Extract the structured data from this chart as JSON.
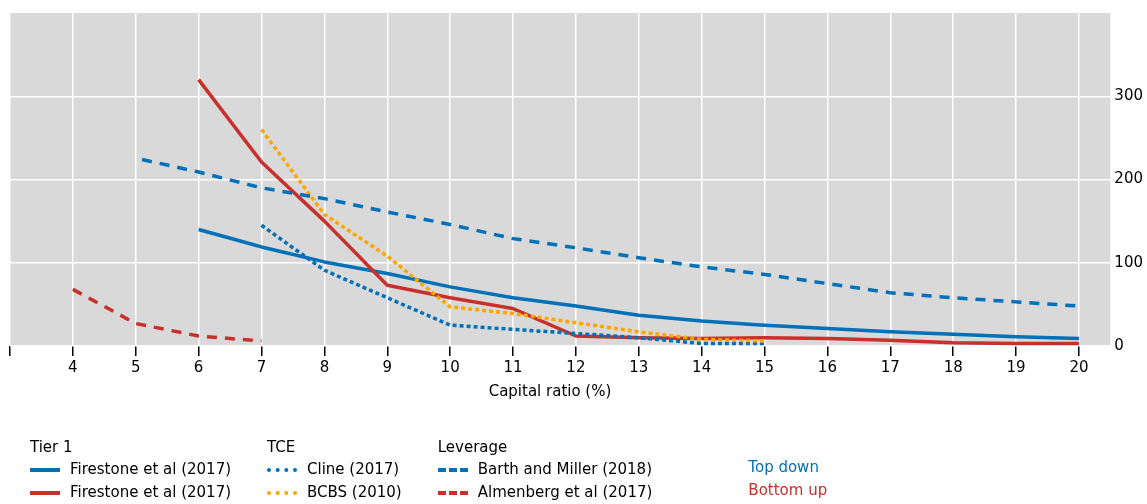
{
  "chart_data": {
    "type": "line",
    "xlabel": "Capital ratio (%)",
    "xlim": [
      3,
      20.5
    ],
    "xticks": [
      {
        "value": 3,
        "label": null
      },
      4,
      5,
      6,
      7,
      8,
      9,
      10,
      11,
      12,
      13,
      14,
      15,
      16,
      17,
      18,
      19,
      20
    ],
    "ylim": [
      0,
      400
    ],
    "yticks": [
      0,
      100,
      200,
      300
    ],
    "grid": true,
    "legend": "bottom",
    "marker": "none",
    "annotations": [
      "Tier 1",
      "TCE",
      "Leverage",
      "Top down",
      "Bottom up"
    ],
    "series": [
      {
        "name": "Firestone et al (2017)",
        "color": "#0070b8",
        "line_style": "solid",
        "x": [
          6,
          7,
          8,
          9,
          10,
          11,
          12,
          13,
          14,
          15,
          16,
          17,
          18,
          19,
          20
        ],
        "values": [
          140,
          119,
          101,
          87,
          71,
          58,
          48,
          37,
          30,
          25,
          21,
          17,
          14,
          11,
          9
        ]
      },
      {
        "name": "Firestone et al (2017)",
        "color": "#c8302c",
        "line_style": "solid",
        "x": [
          6,
          7,
          8,
          9,
          10,
          11,
          12,
          13,
          14,
          15,
          16,
          17,
          18,
          19,
          20
        ],
        "values": [
          320,
          221,
          150,
          73,
          58,
          45,
          12,
          10,
          9,
          10,
          9,
          7,
          4,
          3,
          3
        ]
      },
      {
        "name": "Cline (2017)",
        "color": "#0070b8",
        "line_style": "dotted",
        "x": [
          7,
          8,
          9,
          10,
          11,
          12,
          13,
          14,
          15
        ],
        "values": [
          145,
          91,
          58,
          25,
          20,
          15,
          10,
          3,
          3
        ]
      },
      {
        "name": "BCBS (2010)",
        "color": "#ffa500",
        "line_style": "dotted",
        "x": [
          7,
          8,
          9,
          10,
          11,
          12,
          13,
          14,
          15
        ],
        "values": [
          260,
          158,
          108,
          47,
          39,
          28,
          17,
          8,
          6
        ]
      },
      {
        "name": "Barth and Miller (2018)",
        "color": "#0070b8",
        "line_style": "dashed",
        "x": [
          5.1,
          6,
          7,
          8,
          9,
          10,
          11,
          12,
          13,
          14,
          15,
          16,
          17,
          18,
          19,
          20
        ],
        "values": [
          224,
          209,
          190,
          177,
          161,
          146,
          129,
          118,
          106,
          95,
          86,
          75,
          64,
          58,
          53,
          48
        ]
      },
      {
        "name": "Almenberg et al (2017)",
        "color": "#c8302c",
        "line_style": "dashed",
        "x": [
          4,
          5,
          6,
          7
        ],
        "values": [
          68,
          27,
          12,
          6
        ]
      }
    ]
  }
}
